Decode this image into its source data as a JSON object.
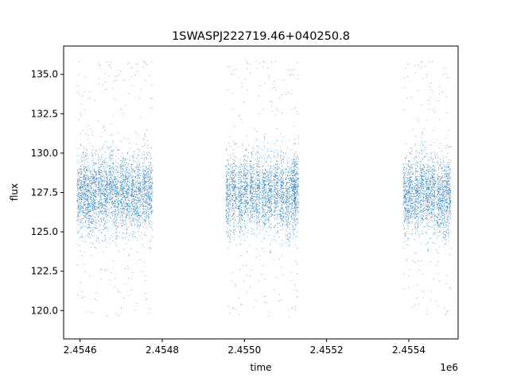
{
  "chart_data": {
    "type": "scatter",
    "title": "1SWASPJ222719.46+040250.8",
    "xlabel": "time",
    "ylabel": "flux",
    "x_offset_label": "1e6",
    "xlim": [
      2454560,
      2455520
    ],
    "ylim": [
      118.2,
      136.8
    ],
    "xticks": [
      2454600,
      2454800,
      2455000,
      2455200,
      2455400
    ],
    "xtick_labels": [
      "2.4546",
      "2.4548",
      "2.4550",
      "2.4552",
      "2.4554"
    ],
    "yticks": [
      120.0,
      122.5,
      125.0,
      127.5,
      130.0,
      132.5,
      135.0
    ],
    "ytick_labels": [
      "120.0",
      "122.5",
      "125.0",
      "127.5",
      "130.0",
      "132.5",
      "135.0"
    ],
    "grid": false,
    "point_color": "#1f77b4",
    "series": [
      {
        "x": [
          2454622,
          2454634,
          2454648,
          2454661,
          2454675,
          2454688,
          2454702,
          2454715,
          2454729,
          2454742,
          2454756,
          2454769,
          2454598,
          2454610
        ],
        "y": [
          127.2,
          127.5,
          127.6,
          127.3,
          127.8,
          127.1,
          127.6,
          127.4,
          127.2,
          127.3,
          127.5,
          127.4,
          127.3,
          127.6
        ]
      },
      {
        "x": [
          2454960,
          2454974,
          2454989,
          2455003,
          2455018,
          2455032,
          2455047,
          2455061,
          2455076,
          2455090,
          2455105,
          2455118,
          2455125
        ],
        "y": [
          127.3,
          127.5,
          127.2,
          127.6,
          127.4,
          127.5,
          127.3,
          127.2,
          127.6,
          127.4,
          127.1,
          127.5,
          127.7
        ]
      },
      {
        "x": [
          2455392,
          2455404,
          2455418,
          2455431,
          2455445,
          2455458,
          2455472,
          2455485,
          2455496
        ],
        "y": [
          127.1,
          127.4,
          127.2,
          127.6,
          127.3,
          127.5,
          127.0,
          127.2,
          127.3
        ]
      }
    ]
  }
}
